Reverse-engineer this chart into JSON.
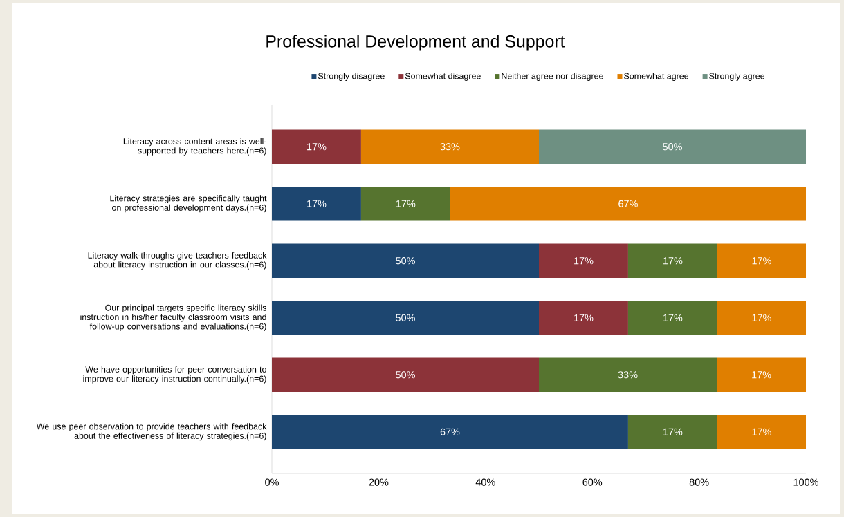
{
  "chart_data": {
    "type": "bar",
    "orientation": "horizontal",
    "stacked": true,
    "title": "Professional Development and Support",
    "categories": [
      "Literacy across content areas is well-supported by teachers here.(n=6)",
      "Literacy strategies are specifically taught on professional development days.(n=6)",
      "Literacy walk-throughs give teachers feedback about literacy instruction in our classes.(n=6)",
      "Our principal targets specific literacy skills instruction in his/her faculty classroom visits and follow-up conversations and evaluations.(n=6)",
      "We have opportunities for peer conversation to improve our literacy instruction continually.(n=6)",
      "We use peer observation to provide teachers with feedback about the effectiveness of literacy strategies.(n=6)"
    ],
    "series": [
      {
        "name": "Strongly disagree",
        "color": "#1d4670",
        "values": [
          null,
          16.7,
          50,
          50,
          null,
          66.7
        ],
        "value_labels": [
          null,
          "17%",
          "50%",
          "50%",
          null,
          "67%"
        ]
      },
      {
        "name": "Somewhat disagree",
        "color": "#8c3339",
        "values": [
          16.7,
          null,
          16.7,
          16.7,
          50,
          null
        ],
        "value_labels": [
          "17%",
          null,
          "17%",
          "17%",
          "50%",
          null
        ]
      },
      {
        "name": "Neither agree nor disagree",
        "color": "#56742f",
        "values": [
          null,
          16.7,
          16.7,
          16.7,
          33.3,
          16.7
        ],
        "value_labels": [
          null,
          "17%",
          "17%",
          "17%",
          "33%",
          "17%"
        ]
      },
      {
        "name": "Somewhat agree",
        "color": "#e07f00",
        "values": [
          33.3,
          66.6,
          16.6,
          16.6,
          16.7,
          16.6
        ],
        "value_labels": [
          "33%",
          "67%",
          "17%",
          "17%",
          "17%",
          "17%"
        ]
      },
      {
        "name": "Strongly agree",
        "color": "#6e9082",
        "values": [
          50,
          null,
          null,
          null,
          null,
          null
        ],
        "value_labels": [
          "50%",
          null,
          null,
          null,
          null,
          null
        ]
      }
    ],
    "xlim": [
      0,
      100
    ],
    "xticks": [
      {
        "value": 0,
        "label": "0%"
      },
      {
        "value": 20,
        "label": "20%"
      },
      {
        "value": 40,
        "label": "40%"
      },
      {
        "value": 60,
        "label": "60%"
      },
      {
        "value": 80,
        "label": "80%"
      },
      {
        "value": 100,
        "label": "100%"
      }
    ],
    "grid": false,
    "legend": "top"
  }
}
